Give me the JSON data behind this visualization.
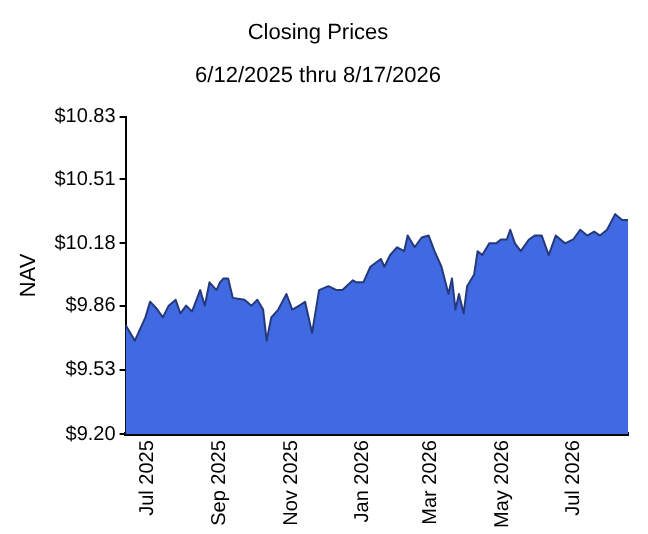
{
  "chart_data": {
    "type": "area",
    "title": "Closing Prices",
    "subtitle": "6/12/2025 thru 8/17/2026",
    "ylabel": "NAV",
    "x": [
      "2025-06-12",
      "2025-06-20",
      "2025-06-29",
      "2025-07-03",
      "2025-07-08",
      "2025-07-14",
      "2025-07-19",
      "2025-07-25",
      "2025-07-29",
      "2025-08-03",
      "2025-08-08",
      "2025-08-15",
      "2025-08-19",
      "2025-08-23",
      "2025-08-29",
      "2025-09-01",
      "2025-09-04",
      "2025-09-08",
      "2025-09-12",
      "2025-09-22",
      "2025-09-28",
      "2025-10-03",
      "2025-10-08",
      "2025-10-11",
      "2025-10-15",
      "2025-10-21",
      "2025-10-28",
      "2025-11-02",
      "2025-11-08",
      "2025-11-13",
      "2025-11-19",
      "2025-11-25",
      "2025-12-03",
      "2025-12-10",
      "2025-12-15",
      "2025-12-24",
      "2025-12-27",
      "2026-01-02",
      "2026-01-08",
      "2026-01-17",
      "2026-01-20",
      "2026-01-25",
      "2026-01-31",
      "2026-02-06",
      "2026-02-09",
      "2026-02-15",
      "2026-02-21",
      "2026-02-27",
      "2026-03-04",
      "2026-03-10",
      "2026-03-16",
      "2026-03-19",
      "2026-03-22",
      "2026-03-25",
      "2026-03-29",
      "2026-04-01",
      "2026-04-07",
      "2026-04-10",
      "2026-04-14",
      "2026-04-20",
      "2026-04-26",
      "2026-04-30",
      "2026-05-05",
      "2026-05-08",
      "2026-05-12",
      "2026-05-17",
      "2026-05-24",
      "2026-05-29",
      "2026-06-04",
      "2026-06-10",
      "2026-06-16",
      "2026-06-24",
      "2026-07-01",
      "2026-07-07",
      "2026-07-13",
      "2026-07-19",
      "2026-07-24",
      "2026-07-30",
      "2026-08-06",
      "2026-08-12",
      "2026-08-17"
    ],
    "series": [
      {
        "color": "#4169e1",
        "values": [
          9.76,
          9.68,
          9.8,
          9.88,
          9.85,
          9.8,
          9.86,
          9.89,
          9.82,
          9.86,
          9.83,
          9.94,
          9.86,
          9.98,
          9.94,
          9.98,
          10.0,
          10.0,
          9.9,
          9.89,
          9.86,
          9.89,
          9.84,
          9.68,
          9.8,
          9.84,
          9.92,
          9.84,
          9.86,
          9.88,
          9.72,
          9.94,
          9.96,
          9.94,
          9.94,
          9.99,
          9.98,
          9.98,
          10.06,
          10.1,
          10.06,
          10.12,
          10.16,
          10.14,
          10.22,
          10.16,
          10.21,
          10.22,
          10.14,
          10.06,
          9.92,
          10.0,
          9.84,
          9.92,
          9.82,
          9.96,
          10.02,
          10.14,
          10.12,
          10.18,
          10.18,
          10.2,
          10.2,
          10.25,
          10.18,
          10.14,
          10.2,
          10.22,
          10.22,
          10.12,
          10.22,
          10.18,
          10.2,
          10.25,
          10.22,
          10.24,
          10.22,
          10.25,
          10.33,
          10.3,
          10.3
        ]
      }
    ],
    "xlim": [
      "2025-06-12",
      "2026-08-17"
    ],
    "xticks": [
      {
        "value": "2025-07-01",
        "label": "Jul 2025"
      },
      {
        "value": "2025-09-01",
        "label": "Sep 2025"
      },
      {
        "value": "2025-11-01",
        "label": "Nov 2025"
      },
      {
        "value": "2026-01-01",
        "label": "Jan 2026"
      },
      {
        "value": "2026-03-01",
        "label": "Mar 2026"
      },
      {
        "value": "2026-05-01",
        "label": "May 2026"
      },
      {
        "value": "2026-07-01",
        "label": "Jul 2026"
      }
    ],
    "ylim": [
      9.2,
      10.83
    ],
    "yticks": [
      {
        "value": 9.2,
        "label": "$9.20"
      },
      {
        "value": 9.53,
        "label": "$9.53"
      },
      {
        "value": 9.86,
        "label": "$9.86"
      },
      {
        "value": 10.18,
        "label": "$10.18"
      },
      {
        "value": 10.51,
        "label": "$10.51"
      },
      {
        "value": 10.83,
        "label": "$10.83"
      }
    ],
    "grid": false,
    "legend": false
  }
}
